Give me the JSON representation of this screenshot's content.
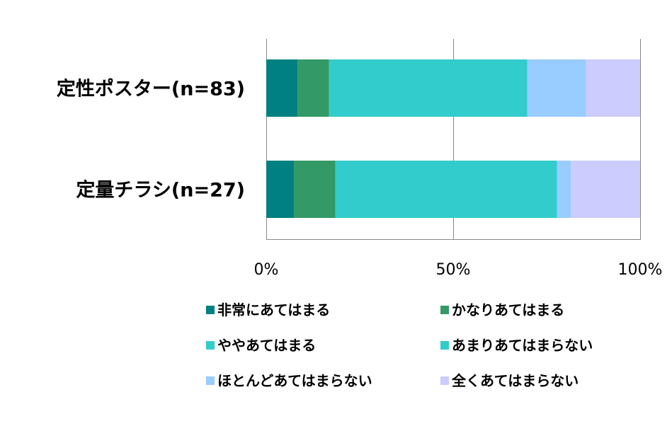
{
  "chart_data": {
    "type": "bar",
    "orientation": "horizontal",
    "stacked": true,
    "percent": true,
    "categories": [
      "定性ポスター(n=83)",
      "定量チラシ(n=27)"
    ],
    "xlim": [
      0,
      100
    ],
    "xticks": [
      {
        "value": 0,
        "label": "0%"
      },
      {
        "value": 50,
        "label": "50%"
      },
      {
        "value": 100,
        "label": "100%"
      }
    ],
    "grid": "vertical",
    "legend_position": "bottom",
    "series": [
      {
        "name": "非常にあてはまる",
        "color": "#008080",
        "values": [
          8.4,
          7.4
        ]
      },
      {
        "name": "かなりあてはまる",
        "color": "#339966",
        "values": [
          8.4,
          11.1
        ]
      },
      {
        "name": "ややあてはまる",
        "color": "#33CCCC",
        "values": [
          53.0,
          59.3
        ]
      },
      {
        "name": "あまりあてはまらない",
        "color": "#33CCCC",
        "values": [
          0,
          0
        ]
      },
      {
        "name": "ほとんどあてはまらない",
        "color": "#99CCFF",
        "values": [
          15.7,
          3.7
        ]
      },
      {
        "name": "全くあてはまらない",
        "color": "#CCCCFF",
        "values": [
          14.5,
          18.5
        ]
      }
    ]
  }
}
